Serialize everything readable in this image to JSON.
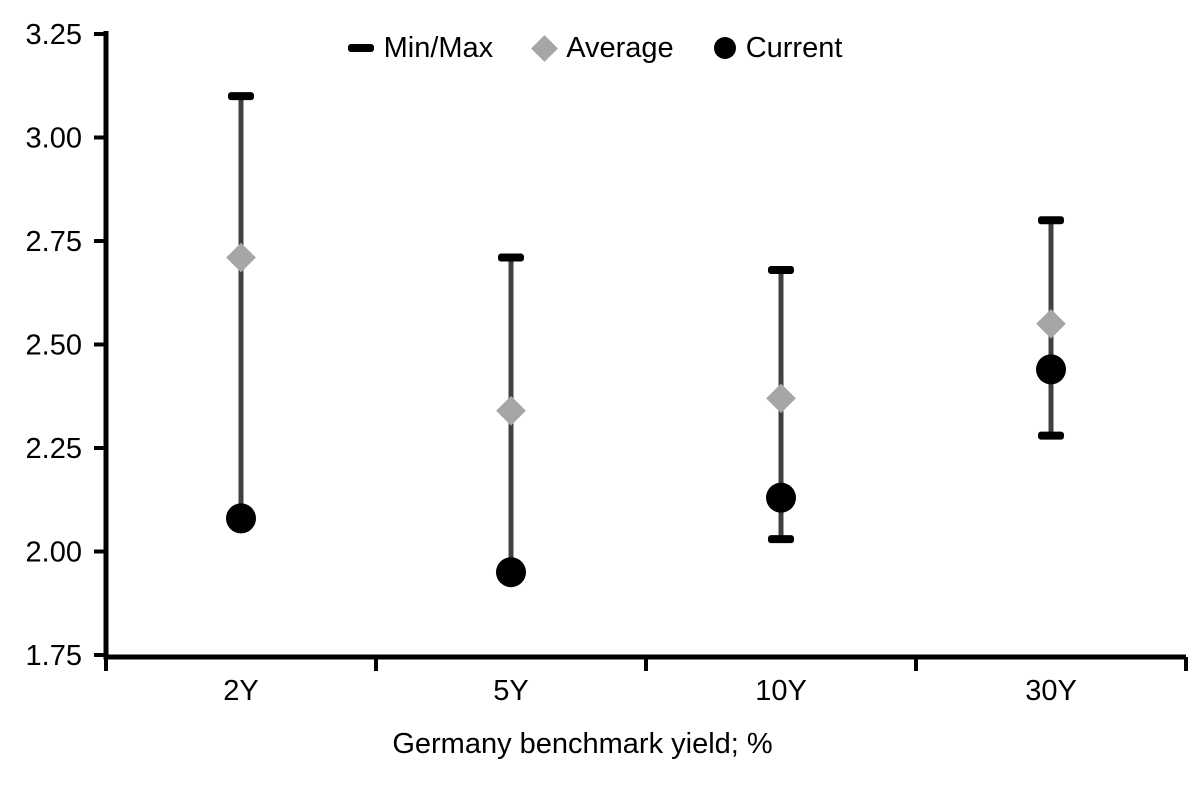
{
  "chart_data": {
    "type": "errorbar-range",
    "title": "",
    "xlabel": "Germany benchmark yield; %",
    "ylabel": "",
    "categories": [
      "2Y",
      "5Y",
      "10Y",
      "30Y"
    ],
    "ylim": [
      1.75,
      3.25
    ],
    "ytick_labels": [
      "1.75",
      "2.00",
      "2.25",
      "2.50",
      "2.75",
      "3.00",
      "3.25"
    ],
    "yticks": [
      1.75,
      2.0,
      2.25,
      2.5,
      2.75,
      3.0,
      3.25
    ],
    "grid": false,
    "legend_position": "top-center",
    "series": [
      {
        "name": "Min/Max",
        "type": "range",
        "min": [
          2.08,
          1.95,
          2.03,
          2.28
        ],
        "max": [
          3.1,
          2.71,
          2.68,
          2.8
        ],
        "min_cap_visible": [
          false,
          false,
          true,
          true
        ],
        "max_cap_visible": [
          true,
          true,
          true,
          true
        ]
      },
      {
        "name": "Average",
        "type": "diamond-marker",
        "values": [
          2.71,
          2.34,
          2.37,
          2.55
        ]
      },
      {
        "name": "Current",
        "type": "circle-marker",
        "values": [
          2.08,
          1.95,
          2.13,
          2.44
        ]
      }
    ],
    "legend": [
      {
        "label": "Min/Max",
        "marker": "dash"
      },
      {
        "label": "Average",
        "marker": "diamond"
      },
      {
        "label": "Current",
        "marker": "circle"
      }
    ],
    "colors": {
      "range_line": "#404040",
      "cap": "#000000",
      "average": "#a6a6a6",
      "current": "#000000",
      "axis": "#000000",
      "text": "#000000",
      "background": "#ffffff"
    }
  }
}
